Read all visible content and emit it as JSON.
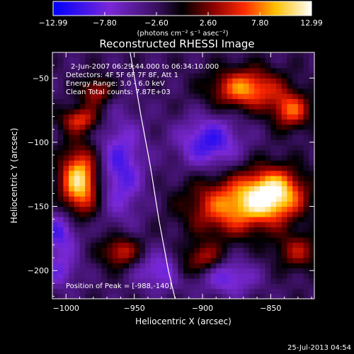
{
  "chart_data": {
    "type": "heatmap",
    "title": "Reconstructed RHESSI Image",
    "xlabel": "Heliocentric X (arcsec)",
    "ylabel": "Heliocentric Y (arcsec)",
    "xlim": [
      -1010,
      -818
    ],
    "ylim": [
      -222,
      -30
    ],
    "x_ticks": [
      {
        "value": -1000,
        "label": "−1000"
      },
      {
        "value": -950,
        "label": "−950"
      },
      {
        "value": -900,
        "label": "−900"
      },
      {
        "value": -850,
        "label": "−850"
      }
    ],
    "y_ticks": [
      {
        "value": -50,
        "label": "−50"
      },
      {
        "value": -100,
        "label": "−100"
      },
      {
        "value": -150,
        "label": "−150"
      },
      {
        "value": -200,
        "label": "−200"
      }
    ],
    "colorbar": {
      "min": -12.99,
      "max": 12.99,
      "colormap": "blue-purple-black-red-yellow-white",
      "tick_labels": [
        {
          "value": -12.99,
          "label": "−12.99"
        },
        {
          "value": -7.8,
          "label": "−7.80"
        },
        {
          "value": -2.6,
          "label": "−2.60"
        },
        {
          "value": 2.6,
          "label": "2.60"
        },
        {
          "value": 7.8,
          "label": "7.80"
        },
        {
          "value": 12.99,
          "label": "12.99"
        }
      ],
      "unit_label": "(photons cm⁻² s⁻¹ asec⁻²)"
    },
    "annotations": [
      "2-Jun-2007 06:29:44.000 to 06:34:10.000",
      "Detectors: 4F 5F 6F 7F 8F, Att 1",
      "Energy Range: 3.0 - 6.0 keV",
      "Clean    Total counts: 7.87E+03"
    ],
    "peak_label": "Position of Peak = [-988,-140]",
    "peak": {
      "x": -988,
      "y": -140
    },
    "limb_curve": [
      [
        -953,
        -30
      ],
      [
        -945,
        -80
      ],
      [
        -938,
        -120
      ],
      [
        -932,
        -160
      ],
      [
        -925,
        -200
      ],
      [
        -920,
        -222
      ]
    ],
    "blobs": [
      {
        "x": -990,
        "y": -130,
        "amp": 14,
        "sx": 10,
        "sy": 18
      },
      {
        "x": -990,
        "y": -82,
        "amp": 8,
        "sx": 10,
        "sy": 7
      },
      {
        "x": -978,
        "y": -60,
        "amp": 7,
        "sx": 8,
        "sy": 8
      },
      {
        "x": -848,
        "y": -140,
        "amp": 14,
        "sx": 16,
        "sy": 14
      },
      {
        "x": -880,
        "y": -150,
        "amp": 10,
        "sx": 22,
        "sy": 16
      },
      {
        "x": -868,
        "y": -58,
        "amp": 11,
        "sx": 18,
        "sy": 11
      },
      {
        "x": -835,
        "y": -75,
        "amp": 9,
        "sx": 10,
        "sy": 10
      },
      {
        "x": -830,
        "y": -185,
        "amp": 6,
        "sx": 12,
        "sy": 10
      },
      {
        "x": -960,
        "y": -185,
        "amp": 8,
        "sx": 10,
        "sy": 9
      },
      {
        "x": -900,
        "y": -190,
        "amp": 7,
        "sx": 10,
        "sy": 8
      },
      {
        "x": -960,
        "y": -120,
        "amp": -7,
        "sx": 12,
        "sy": 28
      },
      {
        "x": -895,
        "y": -100,
        "amp": -8,
        "sx": 16,
        "sy": 14
      },
      {
        "x": -930,
        "y": -200,
        "amp": -6,
        "sx": 14,
        "sy": 10
      },
      {
        "x": -880,
        "y": -205,
        "amp": -6,
        "sx": 14,
        "sy": 10
      },
      {
        "x": -1005,
        "y": -200,
        "amp": -5,
        "sx": 10,
        "sy": 10
      },
      {
        "x": -1005,
        "y": -170,
        "amp": -7,
        "sx": 10,
        "sy": 12
      },
      {
        "x": -915,
        "y": -200,
        "amp": 4,
        "sx": 6,
        "sy": 6
      }
    ]
  },
  "timestamp": "25-Jul-2013 04:54"
}
